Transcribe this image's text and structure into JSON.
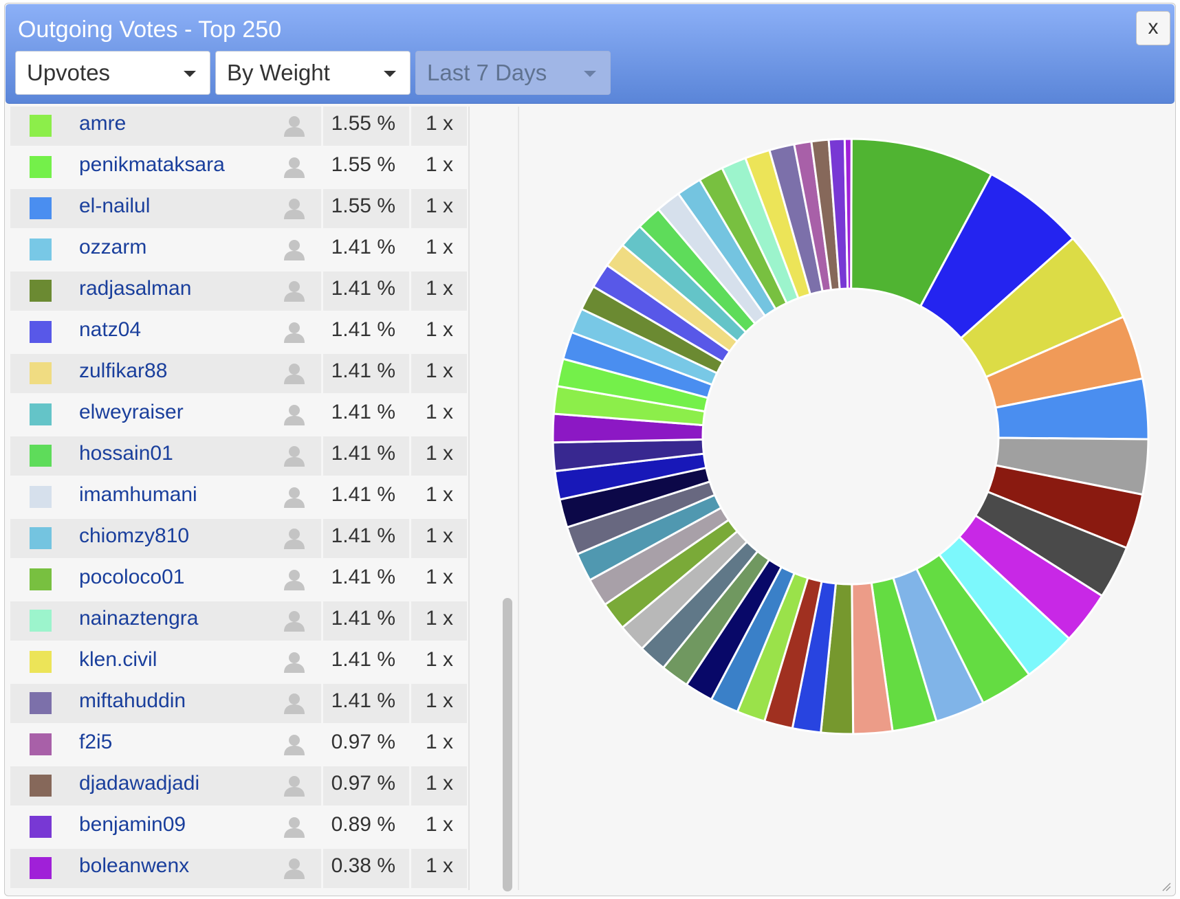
{
  "window": {
    "title": "Outgoing Votes - Top 250",
    "close_label": "x"
  },
  "filters": {
    "vote_type": "Upvotes",
    "sort": "By Weight",
    "period": "Last 7 Days"
  },
  "rows": [
    {
      "name": "amre",
      "percent": "1.55 %",
      "count": "1 x",
      "color": "#8cee4a"
    },
    {
      "name": "penikmataksara",
      "percent": "1.55 %",
      "count": "1 x",
      "color": "#74f04a"
    },
    {
      "name": "el-nailul",
      "percent": "1.55 %",
      "count": "1 x",
      "color": "#4a8ef0"
    },
    {
      "name": "ozzarm",
      "percent": "1.41 %",
      "count": "1 x",
      "color": "#78c8e6"
    },
    {
      "name": "radjasalman",
      "percent": "1.41 %",
      "count": "1 x",
      "color": "#6b8a32"
    },
    {
      "name": "natz04",
      "percent": "1.41 %",
      "count": "1 x",
      "color": "#5858e8"
    },
    {
      "name": "zulfikar88",
      "percent": "1.41 %",
      "count": "1 x",
      "color": "#f0dc82"
    },
    {
      "name": "elweyraiser",
      "percent": "1.41 %",
      "count": "1 x",
      "color": "#64c4c8"
    },
    {
      "name": "hossain01",
      "percent": "1.41 %",
      "count": "1 x",
      "color": "#5edc5a"
    },
    {
      "name": "imamhumani",
      "percent": "1.41 %",
      "count": "1 x",
      "color": "#d6e0ec"
    },
    {
      "name": "chiomzy810",
      "percent": "1.41 %",
      "count": "1 x",
      "color": "#74c4e0"
    },
    {
      "name": "pocoloco01",
      "percent": "1.41 %",
      "count": "1 x",
      "color": "#78c040"
    },
    {
      "name": "nainaztengra",
      "percent": "1.41 %",
      "count": "1 x",
      "color": "#9cf4cc"
    },
    {
      "name": "klen.civil",
      "percent": "1.41 %",
      "count": "1 x",
      "color": "#ece458"
    },
    {
      "name": "miftahuddin",
      "percent": "1.41 %",
      "count": "1 x",
      "color": "#7c70aa"
    },
    {
      "name": "f2i5",
      "percent": "0.97 %",
      "count": "1 x",
      "color": "#a860a8"
    },
    {
      "name": "djadawadjadi",
      "percent": "0.97 %",
      "count": "1 x",
      "color": "#86685a"
    },
    {
      "name": "benjamin09",
      "percent": "0.89 %",
      "count": "1 x",
      "color": "#7838d4"
    },
    {
      "name": "boleanwenx",
      "percent": "0.38 %",
      "count": "1 x",
      "color": "#a020d8"
    }
  ],
  "chart_data": {
    "type": "pie",
    "donut": true,
    "visible_slice_colors": [
      "#50b432",
      "#2424f0",
      "#dcdc46",
      "#f09a58",
      "#4a8ef0",
      "#a0a0a0",
      "#8a1a10",
      "#4a4a4a",
      "#c828e6",
      "#7cf8fc",
      "#64dc42",
      "#80b4e8",
      "#64dc42",
      "#ec9c88",
      "#76982e",
      "#2844e0",
      "#a03020",
      "#9ae24a",
      "#3a80c8",
      "#080868",
      "#709860",
      "#607888",
      "#b8b8b8",
      "#7aaa38",
      "#a8a0a8",
      "#5098b0",
      "#686880",
      "#0c0848",
      "#1818b8",
      "#382890",
      "#8c18c4",
      "#8cee4a",
      "#74f04a",
      "#4a8ef0",
      "#78c8e6",
      "#6b8a32",
      "#5858e8",
      "#f0dc82",
      "#64c4c8",
      "#5edc5a",
      "#d6e0ec",
      "#74c4e0",
      "#78c040",
      "#9cf4cc",
      "#ece458",
      "#7c70aa",
      "#a860a8",
      "#86685a",
      "#7838d4",
      "#a020d8"
    ],
    "slices": [
      {
        "value": 8.1
      },
      {
        "value": 5.8
      },
      {
        "value": 5.2
      },
      {
        "value": 3.6
      },
      {
        "value": 3.4
      },
      {
        "value": 3.1
      },
      {
        "value": 3.1
      },
      {
        "value": 3.0
      },
      {
        "value": 3.0
      },
      {
        "value": 3.0
      },
      {
        "value": 3.0
      },
      {
        "value": 2.8
      },
      {
        "value": 2.5
      },
      {
        "value": 2.2
      },
      {
        "value": 1.8
      },
      {
        "value": 1.6
      },
      {
        "value": 1.6
      },
      {
        "value": 1.6
      },
      {
        "value": 1.6
      },
      {
        "value": 1.6
      },
      {
        "value": 1.6
      },
      {
        "value": 1.6
      },
      {
        "value": 1.6
      },
      {
        "value": 1.6
      },
      {
        "value": 1.6
      },
      {
        "value": 1.6
      },
      {
        "value": 1.6
      },
      {
        "value": 1.6
      },
      {
        "value": 1.6
      },
      {
        "value": 1.6
      },
      {
        "value": 1.6
      },
      {
        "name": "amre",
        "value": 1.55
      },
      {
        "name": "penikmataksara",
        "value": 1.55
      },
      {
        "name": "el-nailul",
        "value": 1.55
      },
      {
        "name": "ozzarm",
        "value": 1.41
      },
      {
        "name": "radjasalman",
        "value": 1.41
      },
      {
        "name": "natz04",
        "value": 1.41
      },
      {
        "name": "zulfikar88",
        "value": 1.41
      },
      {
        "name": "elweyraiser",
        "value": 1.41
      },
      {
        "name": "hossain01",
        "value": 1.41
      },
      {
        "name": "imamhumani",
        "value": 1.41
      },
      {
        "name": "chiomzy810",
        "value": 1.41
      },
      {
        "name": "pocoloco01",
        "value": 1.41
      },
      {
        "name": "nainaztengra",
        "value": 1.41
      },
      {
        "name": "klen.civil",
        "value": 1.41
      },
      {
        "name": "miftahuddin",
        "value": 1.41
      },
      {
        "name": "f2i5",
        "value": 0.97
      },
      {
        "name": "djadawadjadi",
        "value": 0.97
      },
      {
        "name": "benjamin09",
        "value": 0.89
      },
      {
        "name": "boleanwenx",
        "value": 0.38
      }
    ]
  }
}
